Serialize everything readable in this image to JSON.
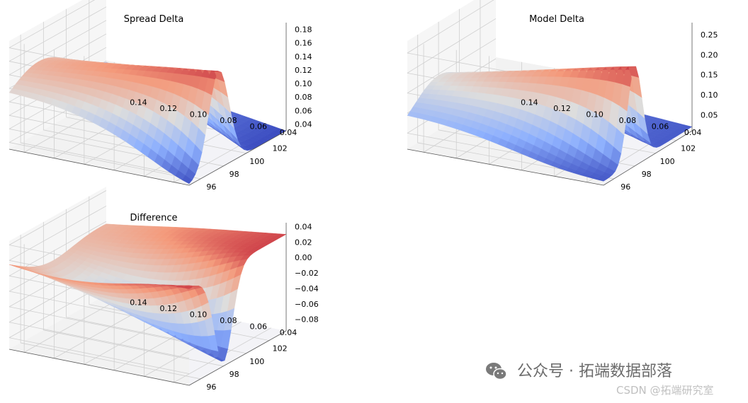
{
  "chart_data": [
    {
      "type": "surface",
      "title": "Spread Delta",
      "x_ticks": [
        "96",
        "98",
        "100",
        "102"
      ],
      "y_ticks": [
        "0.04",
        "0.06",
        "0.08",
        "0.10",
        "0.12",
        "0.14"
      ],
      "z_ticks": [
        "0.04",
        "0.06",
        "0.08",
        "0.10",
        "0.12",
        "0.14",
        "0.16",
        "0.18"
      ],
      "xlim": [
        95,
        103.5
      ],
      "ylim": [
        0.03,
        0.15
      ],
      "zlim": [
        0.03,
        0.19
      ],
      "surface": {
        "peak_x": 97.6,
        "peak_y": 0.03,
        "peak_z": 0.175,
        "base_z": 0.03,
        "colormap": "coolwarm"
      }
    },
    {
      "type": "surface",
      "title": "Model Delta",
      "x_ticks": [
        "96",
        "98",
        "100",
        "102"
      ],
      "y_ticks": [
        "0.04",
        "0.06",
        "0.08",
        "0.10",
        "0.12",
        "0.14"
      ],
      "z_ticks": [
        "0.05",
        "0.10",
        "0.15",
        "0.20",
        "0.25"
      ],
      "xlim": [
        95,
        103.5
      ],
      "ylim": [
        0.03,
        0.15
      ],
      "zlim": [
        0.01,
        0.28
      ],
      "surface": {
        "peak_x": 98.0,
        "peak_y": 0.03,
        "peak_z": 0.26,
        "base_z": 0.02,
        "colormap": "coolwarm"
      }
    },
    {
      "type": "surface",
      "title": "Difference",
      "x_ticks": [
        "96",
        "98",
        "100",
        "102"
      ],
      "y_ticks": [
        "0.04",
        "0.06",
        "0.08",
        "0.10",
        "0.12",
        "0.14"
      ],
      "z_ticks": [
        "0.04",
        "0.02",
        "0.00",
        "−0.02",
        "−0.04",
        "−0.06",
        "−0.08"
      ],
      "xlim": [
        95,
        103.5
      ],
      "ylim": [
        0.03,
        0.15
      ],
      "zlim": [
        -0.095,
        0.045
      ],
      "surface": {
        "trough_x": 98.0,
        "trough_y": 0.03,
        "trough_z": -0.09,
        "plateau_z": 0.03,
        "colormap": "coolwarm"
      }
    }
  ],
  "watermark": {
    "main": "公众号 · 拓端数据部落",
    "sub": "CSDN @拓端研究室"
  }
}
